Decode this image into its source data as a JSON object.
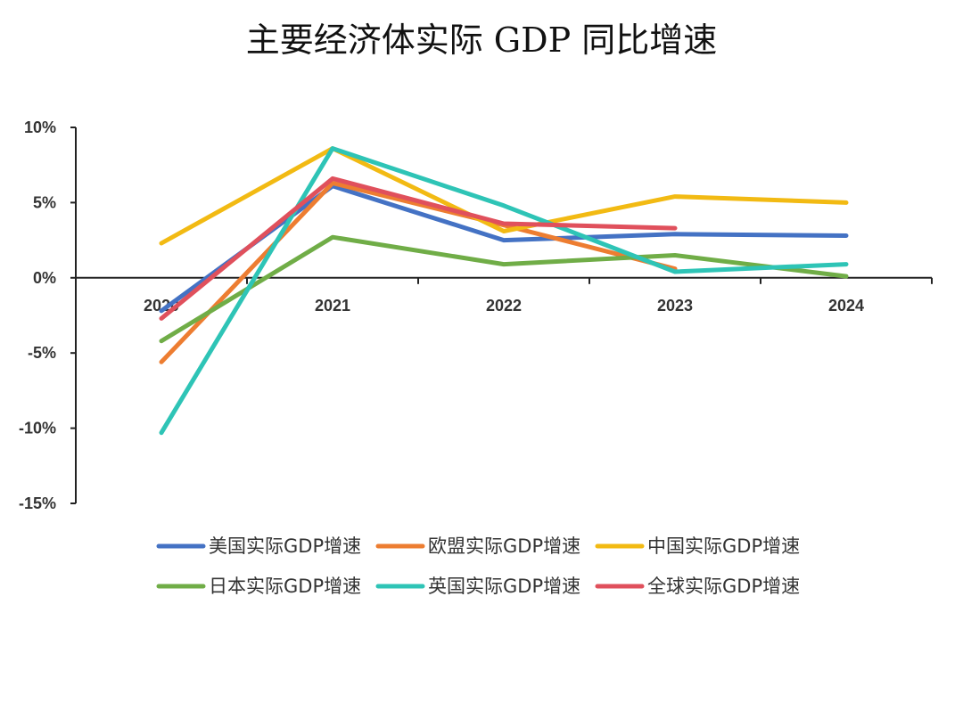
{
  "chart_data": {
    "type": "line",
    "title": "主要经济体实际 GDP 同比增速",
    "x": [
      "2020",
      "2021",
      "2022",
      "2023",
      "2024"
    ],
    "ylim": [
      -15,
      10
    ],
    "yticks": [
      10,
      5,
      0,
      -5,
      -10,
      -15
    ],
    "ytick_labels": [
      "10%",
      "5%",
      "0%",
      "-5%",
      "-10%",
      "-15%"
    ],
    "grid": false,
    "legend_position": "bottom",
    "series": [
      {
        "name": "美国实际GDP增速",
        "color": "#4472C4",
        "values": [
          -2.2,
          6.1,
          2.5,
          2.9,
          2.8
        ]
      },
      {
        "name": "欧盟实际GDP增速",
        "color": "#ED7D31",
        "values": [
          -5.6,
          6.3,
          3.5,
          0.6,
          null
        ]
      },
      {
        "name": "中国实际GDP增速",
        "color": "#F2BA13",
        "values": [
          2.3,
          8.6,
          3.1,
          5.4,
          5.0
        ]
      },
      {
        "name": "日本实际GDP增速",
        "color": "#70AD47",
        "values": [
          -4.2,
          2.7,
          0.9,
          1.5,
          0.1
        ]
      },
      {
        "name": "英国实际GDP增速",
        "color": "#2EC4B6",
        "values": [
          -10.3,
          8.6,
          4.8,
          0.4,
          0.9
        ]
      },
      {
        "name": "全球实际GDP增速",
        "color": "#E0505C",
        "values": [
          -2.7,
          6.6,
          3.6,
          3.3,
          null
        ]
      }
    ]
  }
}
